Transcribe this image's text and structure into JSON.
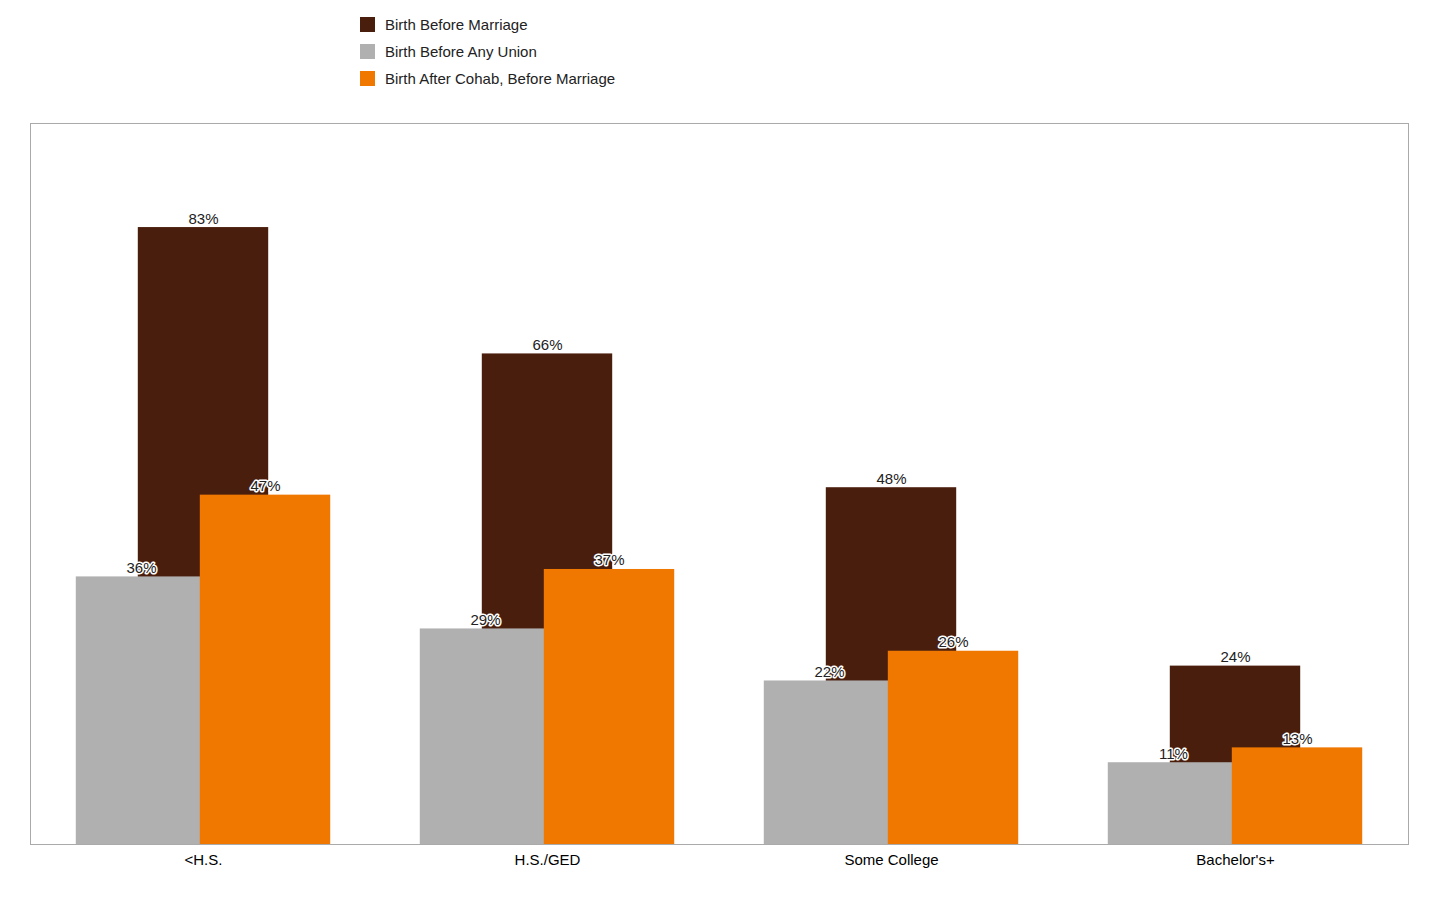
{
  "chart_data": {
    "type": "bar",
    "categories": [
      "<H.S.",
      "H.S./GED",
      "Some College",
      "Bachelor's+"
    ],
    "series": [
      {
        "name": "Birth Before Marriage",
        "color": "#4a1e0d",
        "values": [
          83,
          66,
          48,
          24
        ],
        "value_labels": [
          "83%",
          "66%",
          "48%",
          "24%"
        ]
      },
      {
        "name": "Birth Before Any Union",
        "color": "#b0b0b0",
        "values": [
          36,
          29,
          22,
          11
        ],
        "value_labels": [
          "36%",
          "29%",
          "22%",
          "11%"
        ]
      },
      {
        "name": "Birth After Cohab, Before Marriage",
        "color": "#f07800",
        "values": [
          47,
          37,
          26,
          13
        ],
        "value_labels": [
          "47%",
          "37%",
          "26%",
          "13%"
        ]
      }
    ],
    "ylim": [
      0,
      97
    ],
    "data_labels": true,
    "tick_labels": "x",
    "grid": false,
    "legend": "upper left"
  }
}
